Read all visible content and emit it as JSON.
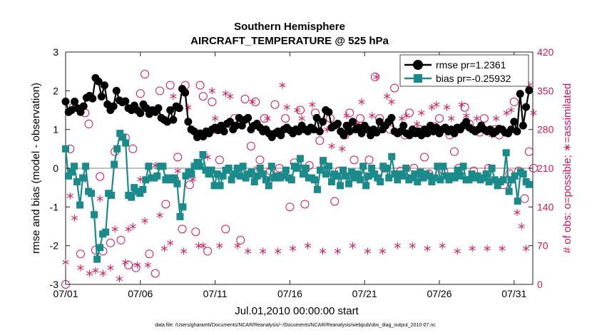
{
  "chart_data": {
    "type": "line",
    "title": "Southern Hemisphere",
    "subtitle": "AIRCRAFT_TEMPERATURE @ 525 hPa",
    "xlabel": "Jul.01,2010 00:00:00 start",
    "ylabel_left": "rmse and bias (model - observation)",
    "ylabel_right": "# of obs: o=possible; ∗=assimilated",
    "x_ticks": [
      "07/01",
      "07/06",
      "07/11",
      "07/16",
      "07/21",
      "07/26",
      "07/31"
    ],
    "x_tick_days": [
      0,
      5,
      10,
      15,
      20,
      25,
      30
    ],
    "xlim": [
      0,
      31.25
    ],
    "y_left_ticks": [
      "3",
      "2",
      "1",
      "0",
      "-1",
      "-2",
      "-3"
    ],
    "ylim_left": [
      -3,
      3
    ],
    "y_right_ticks": [
      "420",
      "350",
      "280",
      "210",
      "140",
      "70",
      "0"
    ],
    "ylim_right": [
      0,
      420
    ],
    "footer": "data file: /Users/gharamti/Documents/NCAR/Reanalysis/~/Documents/NCAR/Reanalysis/webpub/obs_diag_output_2010-07.nc",
    "colors": {
      "rmse": "#000000",
      "bias": "#1a8a8a",
      "obs": "#d4145a",
      "zero": "#aaaaaa"
    },
    "series": [
      {
        "name": "rmse pr=1.2361",
        "values": [
          1.72,
          1.45,
          1.5,
          1.72,
          1.55,
          1.45,
          1.6,
          1.82,
          1.87,
          1.8,
          2.33,
          2.24,
          1.85,
          2.14,
          1.65,
          1.5,
          1.6,
          2.0,
          1.75,
          1.7,
          1.73,
          1.55,
          1.5,
          1.62,
          1.5,
          1.42,
          1.65,
          1.55,
          1.4,
          1.5,
          1.45,
          1.55,
          1.3,
          1.25,
          1.2,
          1.5,
          1.25,
          1.6,
          1.55,
          2.05,
          1.95,
          1.2,
          1.0,
          0.95,
          0.8,
          0.9,
          0.82,
          0.95,
          0.9,
          1.0,
          1.05,
          0.98,
          1.1,
          0.95,
          1.15,
          1.2,
          1.0,
          1.1,
          1.3,
          1.1,
          1.25,
          1.3,
          1.0,
          1.1,
          1.15,
          1.05,
          0.95,
          1.0,
          0.9,
          0.8,
          0.9,
          0.95,
          0.85,
          1.0,
          1.05,
          0.98,
          0.9,
          1.0,
          0.95,
          1.1,
          1.0,
          0.95,
          1.05,
          1.0,
          1.3,
          0.95,
          1.2,
          1.5,
          1.45,
          1.05,
          1.1,
          1.15,
          0.95,
          0.85,
          1.1,
          0.95,
          1.2,
          1.0,
          1.05,
          0.9,
          1.1,
          1.0,
          0.85,
          1.0,
          0.92,
          1.2,
          1.0,
          1.1,
          1.2,
          1.3,
          0.95,
          0.9,
          0.95,
          1.1,
          0.9,
          0.85,
          1.0,
          0.9,
          0.95,
          0.85,
          1.0,
          0.9,
          1.1,
          0.95,
          1.05,
          0.9,
          1.0,
          1.05,
          0.95,
          1.0,
          0.9,
          1.05,
          1.0,
          1.1,
          1.2,
          1.05,
          1.0,
          0.95,
          1.0,
          1.1,
          1.0,
          0.95,
          1.0,
          0.9,
          0.95,
          1.02,
          1.0,
          0.92,
          0.9,
          1.0,
          1.2,
          0.95,
          1.92,
          1.1,
          1.58,
          2.01
        ]
      },
      {
        "name": "bias pr=-0.25932",
        "values": [
          0.5,
          -0.2,
          -0.1,
          0.05,
          -0.35,
          -0.95,
          -0.25,
          0.05,
          -0.6,
          -0.65,
          -1.2,
          -2.35,
          -2.05,
          -1.7,
          -1.65,
          -0.65,
          -0.7,
          0.1,
          0.5,
          0.9,
          0.8,
          0.65,
          -0.7,
          -0.75,
          -0.5,
          -0.6,
          -0.65,
          -0.55,
          -0.3,
          0.05,
          -0.25,
          -0.25,
          -0.2,
          0.05,
          0.05,
          -0.3,
          -0.25,
          -0.3,
          -0.25,
          -0.4,
          -1.25,
          -1.0,
          -0.2,
          -0.1,
          -0.15,
          0.05,
          0.15,
          0.05,
          0.35,
          -0.05,
          -0.15,
          -0.05,
          -0.45,
          -0.15,
          -0.45,
          -0.2,
          -0.05,
          0.0,
          -0.3,
          -0.15,
          0.0,
          -0.2,
          0.05,
          -0.25,
          -0.15,
          -0.1,
          -0.35,
          -0.2,
          0.0,
          -0.15,
          -0.3,
          -0.45,
          0.05,
          -0.25,
          -0.2,
          -0.25,
          -0.2,
          -0.05,
          -0.25,
          -0.3,
          0.05,
          0.0,
          0.25,
          -0.15,
          0.0,
          -0.25,
          -0.25,
          -0.3,
          -0.55,
          -0.05,
          0.2,
          -0.15,
          0.05,
          -0.35,
          -0.15,
          -0.2,
          -0.45,
          -0.05,
          -0.2,
          -0.4,
          -0.1,
          -0.25,
          -0.15,
          -0.3,
          0.05,
          -0.45,
          -0.2,
          0.0,
          -0.15,
          -0.25,
          -0.35,
          0.05,
          0.0,
          -0.25,
          0.3,
          -0.15,
          -0.3,
          -0.15,
          -0.2,
          0.0,
          -0.3,
          -0.25,
          -0.15,
          -0.35,
          -0.1,
          -0.25,
          -0.15,
          -0.2,
          -0.35,
          -0.25,
          0.05,
          -0.3,
          0.05,
          -0.2,
          -0.3,
          -0.2,
          -0.25,
          -0.05,
          -0.2,
          0.05,
          -0.3,
          -0.3,
          -0.15,
          -0.25,
          -0.2,
          -0.3,
          -0.25,
          -0.15,
          -0.35,
          0.0,
          -0.3,
          -0.45,
          -0.35,
          -0.3,
          0.4,
          -0.6,
          -0.3,
          -0.2,
          -0.85,
          -0.1,
          -0.15,
          -0.35,
          -0.42
        ]
      }
    ],
    "obs_possible": [
      [
        0.0,
        0
      ],
      [
        0.3,
        245
      ],
      [
        0.5,
        320
      ],
      [
        1.0,
        55
      ],
      [
        1.3,
        310
      ],
      [
        1.55,
        290
      ],
      [
        2.0,
        62
      ],
      [
        2.3,
        195
      ],
      [
        2.5,
        60
      ],
      [
        3.0,
        75
      ],
      [
        3.3,
        240
      ],
      [
        3.7,
        80
      ],
      [
        4.0,
        265
      ],
      [
        4.2,
        35
      ],
      [
        4.5,
        245
      ],
      [
        4.7,
        30
      ],
      [
        5.0,
        345
      ],
      [
        5.3,
        380
      ],
      [
        5.6,
        55
      ],
      [
        6.0,
        20
      ],
      [
        6.3,
        350
      ],
      [
        6.7,
        145
      ],
      [
        7.0,
        360
      ],
      [
        7.3,
        190
      ],
      [
        7.5,
        230
      ],
      [
        7.8,
        100
      ],
      [
        8.0,
        360
      ],
      [
        8.3,
        180
      ],
      [
        8.7,
        95
      ],
      [
        9.0,
        360
      ],
      [
        9.2,
        340
      ],
      [
        9.5,
        60
      ],
      [
        9.8,
        330
      ],
      [
        10.0,
        280
      ],
      [
        10.3,
        225
      ],
      [
        10.7,
        100
      ],
      [
        11.0,
        290
      ],
      [
        11.3,
        300
      ],
      [
        11.7,
        80
      ],
      [
        12.0,
        335
      ],
      [
        12.4,
        250
      ],
      [
        12.7,
        330
      ],
      [
        13.0,
        225
      ],
      [
        13.3,
        300
      ],
      [
        13.7,
        205
      ],
      [
        14.0,
        325
      ],
      [
        14.3,
        210
      ],
      [
        14.7,
        300
      ],
      [
        15.0,
        140
      ],
      [
        15.3,
        220
      ],
      [
        15.7,
        315
      ],
      [
        16.0,
        145
      ],
      [
        16.3,
        215
      ],
      [
        16.7,
        310
      ],
      [
        17.0,
        260
      ],
      [
        17.3,
        215
      ],
      [
        17.7,
        300
      ],
      [
        18.0,
        150
      ],
      [
        18.3,
        205
      ],
      [
        18.7,
        270
      ],
      [
        19.0,
        310
      ],
      [
        19.3,
        225
      ],
      [
        19.7,
        300
      ],
      [
        20.0,
        195
      ],
      [
        20.3,
        225
      ],
      [
        20.7,
        375
      ],
      [
        21.0,
        300
      ],
      [
        21.3,
        210
      ],
      [
        21.7,
        280
      ],
      [
        22.0,
        355
      ],
      [
        22.4,
        205
      ],
      [
        22.7,
        270
      ],
      [
        23.0,
        310
      ],
      [
        23.3,
        210
      ],
      [
        23.7,
        280
      ],
      [
        24.0,
        230
      ],
      [
        24.3,
        200
      ],
      [
        24.7,
        285
      ],
      [
        25.0,
        300
      ],
      [
        25.3,
        205
      ],
      [
        25.7,
        270
      ],
      [
        26.0,
        240
      ],
      [
        26.3,
        210
      ],
      [
        26.7,
        320
      ],
      [
        27.0,
        290
      ],
      [
        27.3,
        205
      ],
      [
        27.7,
        275
      ],
      [
        28.0,
        300
      ],
      [
        28.3,
        210
      ],
      [
        28.7,
        280
      ],
      [
        29.0,
        270
      ],
      [
        29.3,
        180
      ],
      [
        29.7,
        200
      ],
      [
        30.0,
        330
      ],
      [
        30.3,
        205
      ],
      [
        30.7,
        155
      ],
      [
        31.0,
        240
      ],
      [
        31.3,
        210
      ]
    ],
    "obs_assimilated": [
      [
        0.0,
        40
      ],
      [
        0.3,
        160
      ],
      [
        0.6,
        120
      ],
      [
        1.0,
        30
      ],
      [
        1.3,
        190
      ],
      [
        1.6,
        20
      ],
      [
        2.0,
        25
      ],
      [
        2.3,
        155
      ],
      [
        2.5,
        20
      ],
      [
        3.0,
        30
      ],
      [
        3.3,
        100
      ],
      [
        3.6,
        10
      ],
      [
        4.0,
        40
      ],
      [
        4.2,
        100
      ],
      [
        4.5,
        105
      ],
      [
        4.8,
        35
      ],
      [
        5.0,
        190
      ],
      [
        5.3,
        115
      ],
      [
        5.5,
        35
      ],
      [
        6.0,
        215
      ],
      [
        6.3,
        125
      ],
      [
        6.6,
        65
      ],
      [
        7.0,
        75
      ],
      [
        7.2,
        340
      ],
      [
        7.5,
        205
      ],
      [
        7.9,
        60
      ],
      [
        8.2,
        320
      ],
      [
        8.5,
        190
      ],
      [
        8.9,
        70
      ],
      [
        9.2,
        70
      ],
      [
        9.5,
        230
      ],
      [
        9.8,
        350
      ],
      [
        10.0,
        300
      ],
      [
        10.3,
        70
      ],
      [
        10.7,
        345
      ],
      [
        11.0,
        340
      ],
      [
        11.5,
        70
      ],
      [
        11.8,
        290
      ],
      [
        12.2,
        60
      ],
      [
        12.5,
        330
      ],
      [
        12.8,
        210
      ],
      [
        13.2,
        60
      ],
      [
        13.5,
        300
      ],
      [
        13.8,
        190
      ],
      [
        14.2,
        60
      ],
      [
        14.5,
        360
      ],
      [
        14.8,
        320
      ],
      [
        15.2,
        65
      ],
      [
        15.5,
        315
      ],
      [
        15.8,
        300
      ],
      [
        16.2,
        70
      ],
      [
        16.5,
        325
      ],
      [
        16.8,
        300
      ],
      [
        17.2,
        60
      ],
      [
        17.5,
        280
      ],
      [
        17.8,
        250
      ],
      [
        18.2,
        60
      ],
      [
        18.5,
        245
      ],
      [
        18.8,
        305
      ],
      [
        19.2,
        70
      ],
      [
        19.5,
        290
      ],
      [
        19.8,
        330
      ],
      [
        20.2,
        60
      ],
      [
        20.5,
        305
      ],
      [
        20.8,
        375
      ],
      [
        21.2,
        60
      ],
      [
        21.5,
        340
      ],
      [
        21.8,
        330
      ],
      [
        22.2,
        70
      ],
      [
        22.5,
        300
      ],
      [
        22.8,
        305
      ],
      [
        23.2,
        70
      ],
      [
        23.5,
        290
      ],
      [
        23.8,
        310
      ],
      [
        24.2,
        65
      ],
      [
        24.5,
        320
      ],
      [
        24.8,
        325
      ],
      [
        25.2,
        70
      ],
      [
        25.5,
        320
      ],
      [
        25.8,
        300
      ],
      [
        26.2,
        60
      ],
      [
        26.5,
        325
      ],
      [
        26.8,
        305
      ],
      [
        27.2,
        65
      ],
      [
        27.5,
        300
      ],
      [
        27.8,
        290
      ],
      [
        28.2,
        65
      ],
      [
        28.5,
        270
      ],
      [
        28.8,
        300
      ],
      [
        29.2,
        65
      ],
      [
        29.5,
        310
      ],
      [
        29.8,
        315
      ],
      [
        30.2,
        130
      ],
      [
        30.5,
        105
      ],
      [
        30.8,
        65
      ],
      [
        31.0,
        360
      ],
      [
        31.3,
        310
      ]
    ]
  }
}
